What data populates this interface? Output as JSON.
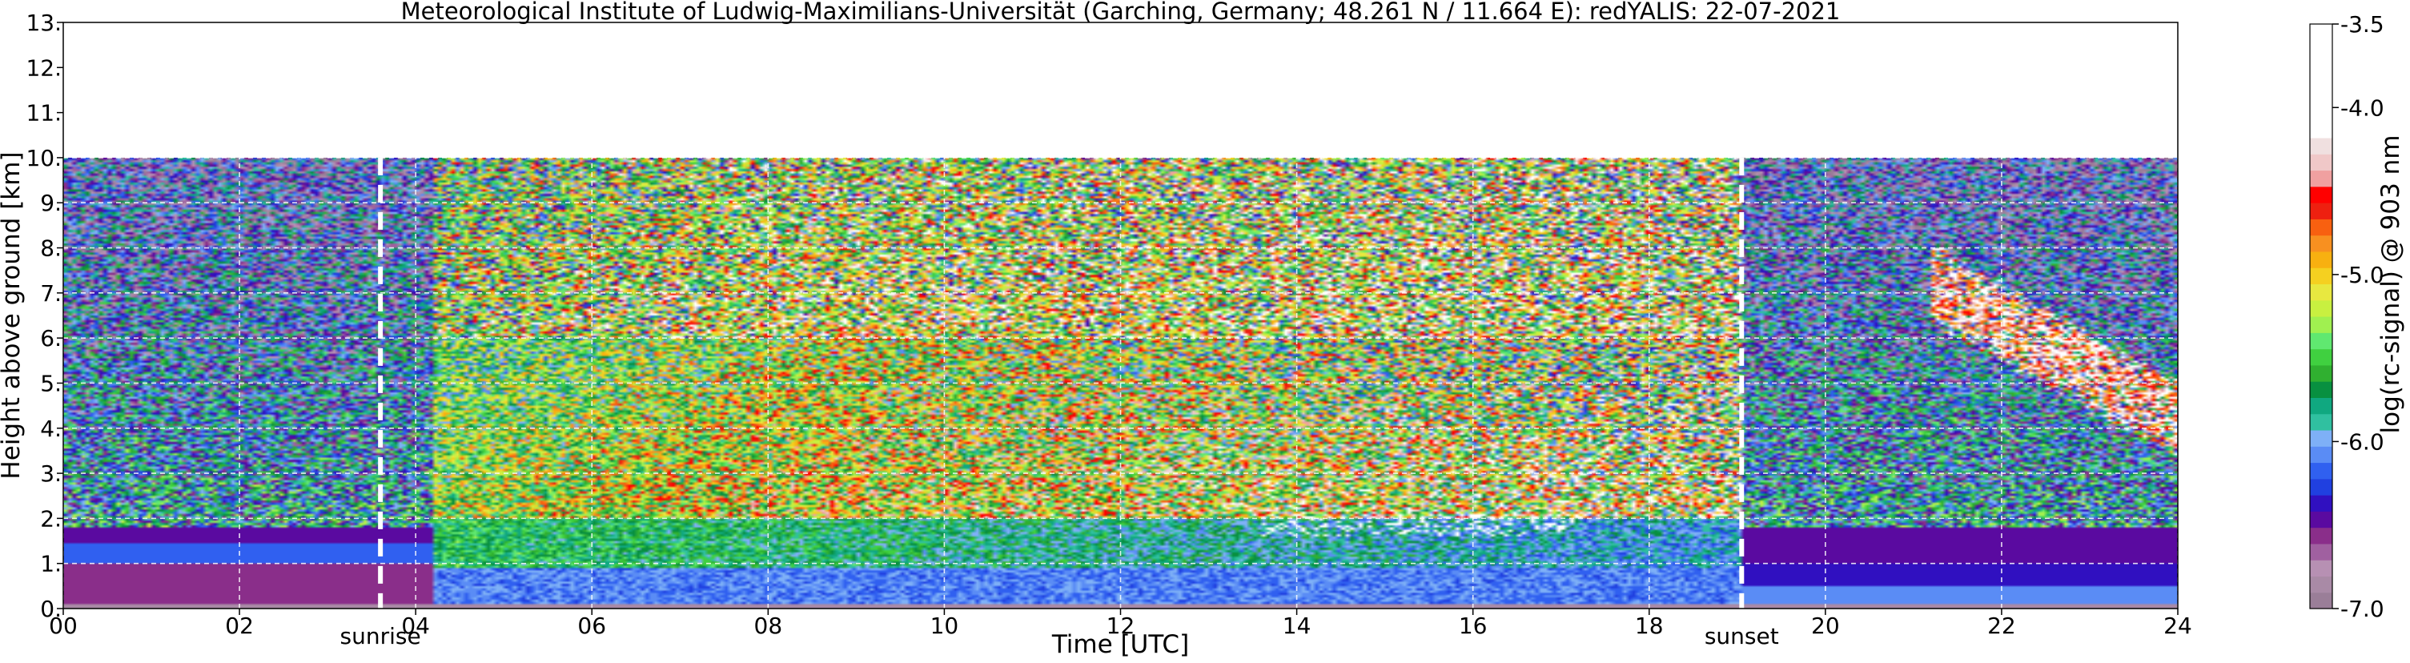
{
  "chart_data": {
    "type": "heatmap",
    "title": "Meteorological Institute of Ludwig-Maximilians-Universität (Garching, Germany; 48.261 N / 11.664 E):    redYALIS: 22-07-2021",
    "xlabel": "Time [UTC]",
    "ylabel": "Height above ground [km]",
    "x_tick_labels": [
      "00",
      "02",
      "04",
      "06",
      "08",
      "10",
      "12",
      "14",
      "16",
      "18",
      "20",
      "22",
      "24"
    ],
    "x_tick_values": [
      0,
      2,
      4,
      6,
      8,
      10,
      12,
      14,
      16,
      18,
      20,
      22,
      24
    ],
    "y_tick_labels": [
      "0.",
      "1.",
      "2.",
      "3.",
      "4.",
      "5.",
      "6.",
      "7.",
      "8.",
      "9.",
      "10.",
      "11.",
      "12.",
      "13."
    ],
    "y_tick_values": [
      0,
      1,
      2,
      3,
      4,
      5,
      6,
      7,
      8,
      9,
      10,
      11,
      12,
      13
    ],
    "xlim": [
      0,
      24
    ],
    "ylim": [
      0,
      13
    ],
    "data_top_km": 10,
    "grid": true,
    "colorbar": {
      "label": "log(rc-signal) @ 903 nm",
      "ticks": [
        "-3.5",
        "-4.0",
        "-5.0",
        "-6.0",
        "-7.0"
      ],
      "tick_values": [
        -3.5,
        -4.0,
        -5.0,
        -6.0,
        -7.0
      ],
      "range": [
        -7.0,
        -3.5
      ],
      "colors": [
        "#9a7e98",
        "#a98aa6",
        "#b790b3",
        "#a060a0",
        "#8a2e8a",
        "#5a0aa0",
        "#3010c0",
        "#2040e0",
        "#3060f0",
        "#5a8cf5",
        "#7eb0f7",
        "#30c0a0",
        "#10a880",
        "#089040",
        "#30b030",
        "#40d040",
        "#60e870",
        "#a0f050",
        "#c8f040",
        "#e8e840",
        "#f5d020",
        "#f8b010",
        "#f89020",
        "#f86010",
        "#ee2010",
        "#ff0000",
        "#f0a0a0",
        "#f0c8c8",
        "#f0e0e0",
        "#ffffff",
        "#ffffff",
        "#ffffff",
        "#ffffff",
        "#ffffff",
        "#ffffff",
        "#ffffff"
      ]
    },
    "events": [
      {
        "label": "sunrise",
        "time_utc": 3.6
      },
      {
        "label": "sunset",
        "time_utc": 19.05
      }
    ],
    "features": {
      "boundary_layer_night_top_km": 1.0,
      "residual_layer_top_km": 1.8,
      "daytime_aerosol_top_km": 2.0,
      "convective_clouds_km": [
        1.5,
        2.2
      ],
      "convective_clouds_time_utc": [
        13.5,
        17.2
      ],
      "cirrus_time_utc": [
        21.2,
        24.0
      ],
      "cirrus_km": [
        3.5,
        7.8
      ]
    }
  }
}
